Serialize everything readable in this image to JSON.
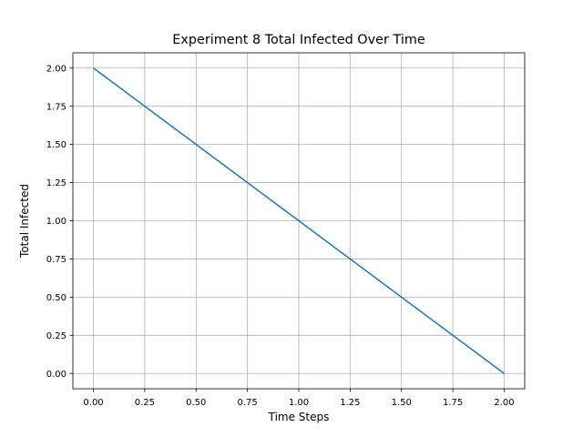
{
  "chart_data": {
    "type": "line",
    "title": "Experiment 8 Total Infected Over Time",
    "xlabel": "Time Steps",
    "ylabel": "Total Infected",
    "xlim": [
      -0.1,
      2.1
    ],
    "ylim": [
      -0.1,
      2.1
    ],
    "grid": true,
    "x_ticks": [
      0.0,
      0.25,
      0.5,
      0.75,
      1.0,
      1.25,
      1.5,
      1.75,
      2.0
    ],
    "y_ticks": [
      0.0,
      0.25,
      0.5,
      0.75,
      1.0,
      1.25,
      1.5,
      1.75,
      2.0
    ],
    "x_tick_labels": [
      "0.00",
      "0.25",
      "0.50",
      "0.75",
      "1.00",
      "1.25",
      "1.50",
      "1.75",
      "2.00"
    ],
    "y_tick_labels": [
      "0.00",
      "0.25",
      "0.50",
      "0.75",
      "1.00",
      "1.25",
      "1.50",
      "1.75",
      "2.00"
    ],
    "series": [
      {
        "x": [
          0,
          1,
          2
        ],
        "y": [
          2,
          1,
          0
        ],
        "color": "#1f77b4"
      }
    ]
  }
}
